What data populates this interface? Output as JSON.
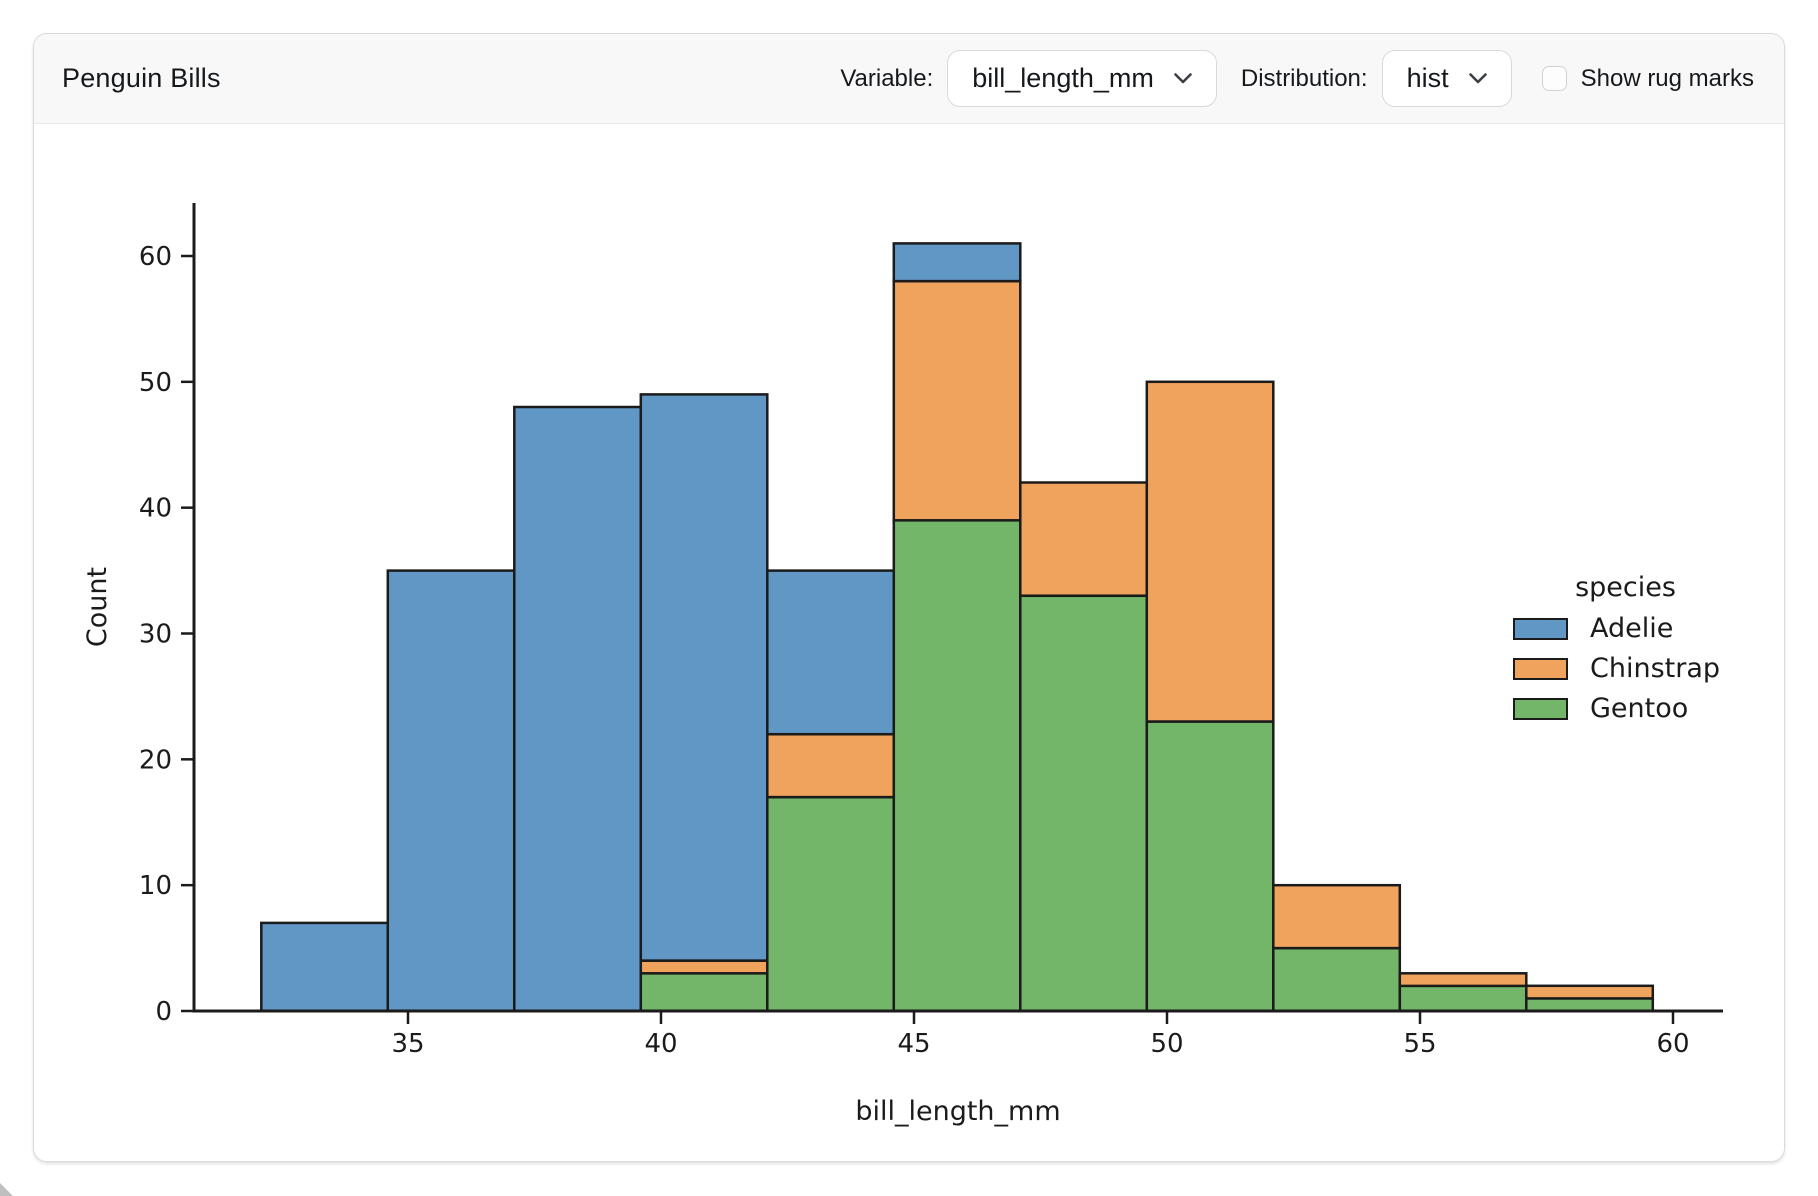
{
  "header": {
    "title": "Penguin Bills",
    "controls": {
      "variable_label": "Variable:",
      "variable_value": "bill_length_mm",
      "distribution_label": "Distribution:",
      "distribution_value": "hist",
      "rug_label": "Show rug marks",
      "rug_checked": false
    }
  },
  "icons": {
    "variable_select": "chevron-down",
    "distribution_select": "chevron-down"
  },
  "ui_colors": {
    "card_border": "#d8dbde",
    "header_bg": "#f8f8f9",
    "text": "#16191c"
  },
  "chart_data": {
    "type": "bar",
    "subtype": "stacked-histogram",
    "title": "",
    "xlabel": "bill_length_mm",
    "ylabel": "Count",
    "bin_edges": [
      32.1,
      34.6,
      37.1,
      39.6,
      42.1,
      44.6,
      47.1,
      49.6,
      52.1,
      54.6,
      57.1,
      59.6
    ],
    "x_ticks": [
      35,
      40,
      45,
      50,
      55,
      60
    ],
    "y_ticks": [
      0,
      10,
      20,
      30,
      40,
      50,
      60
    ],
    "xlim": [
      30.8,
      61.0
    ],
    "ylim": [
      0,
      64.2
    ],
    "grid": false,
    "edge_color": "#1b1b1b",
    "legend": {
      "title": "species",
      "position": "right"
    },
    "stack_order_bottom_to_top": [
      "Gentoo",
      "Chinstrap",
      "Adelie"
    ],
    "series": [
      {
        "name": "Adelie",
        "color": "#6197C5",
        "values": [
          7,
          35,
          48,
          45,
          13,
          3,
          0,
          0,
          0,
          0,
          0
        ]
      },
      {
        "name": "Chinstrap",
        "color": "#F0A35C",
        "values": [
          0,
          0,
          0,
          1,
          5,
          19,
          9,
          27,
          5,
          1,
          1
        ]
      },
      {
        "name": "Gentoo",
        "color": "#73B669",
        "values": [
          0,
          0,
          0,
          3,
          17,
          39,
          33,
          23,
          5,
          2,
          1
        ]
      }
    ],
    "bin_totals": [
      7,
      35,
      48,
      49,
      35,
      61,
      42,
      50,
      10,
      3,
      2
    ]
  }
}
